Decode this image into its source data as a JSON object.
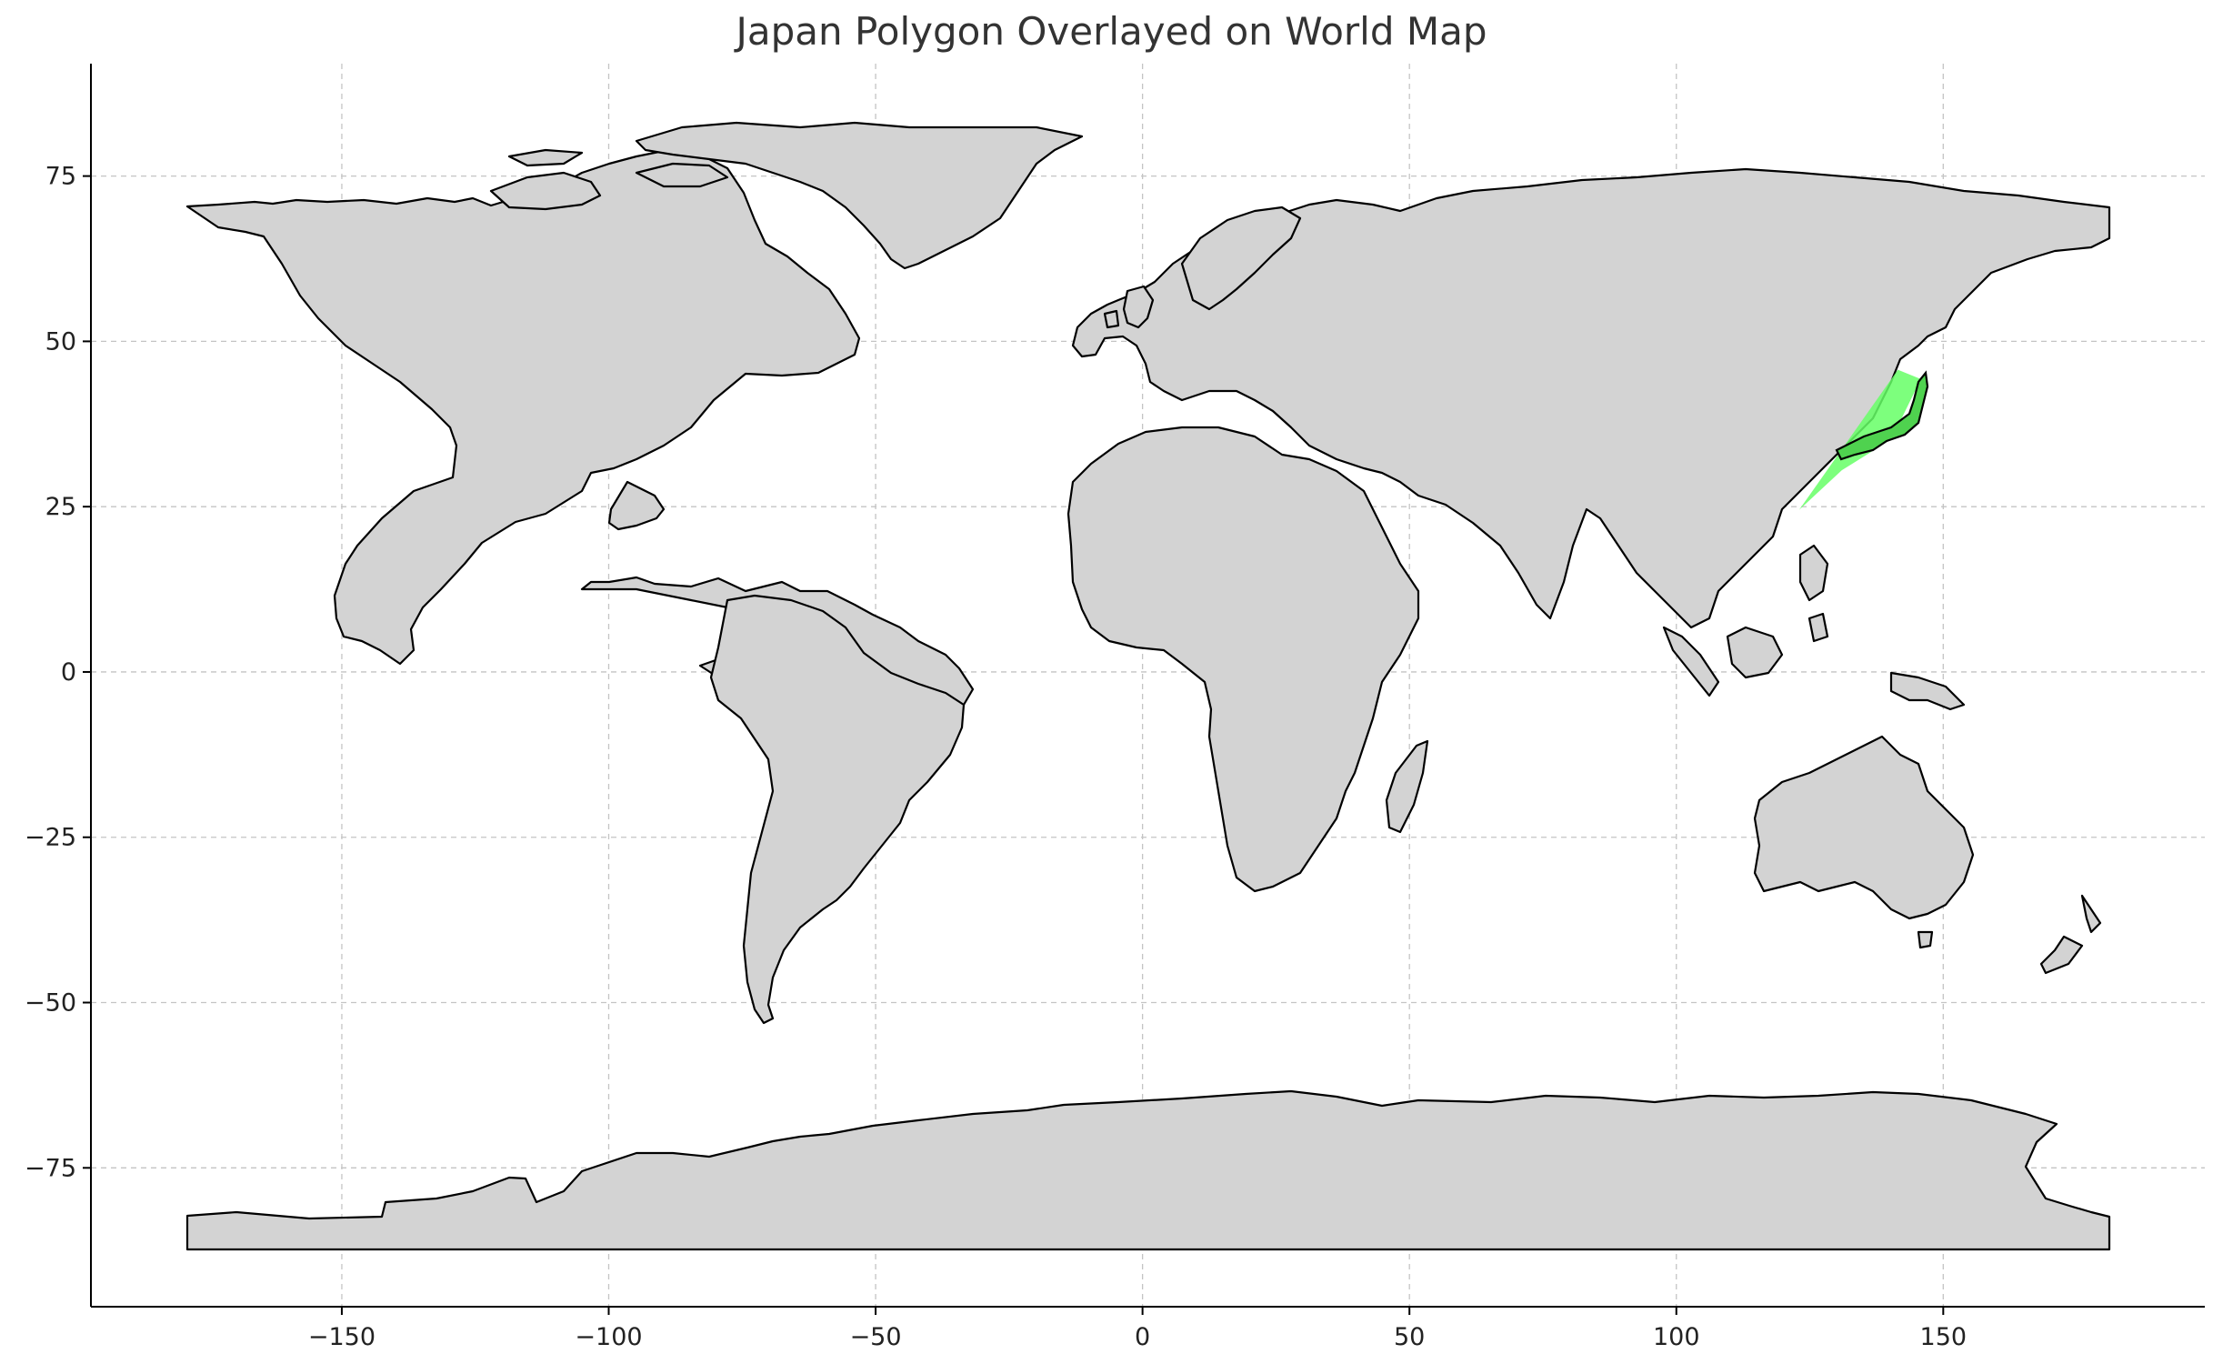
{
  "chart_data": {
    "type": "map",
    "title": "Japan Polygon Overlayed on World Map",
    "xlabel": "",
    "ylabel": "",
    "xlim": [
      -197,
      199
    ],
    "ylim": [
      -96,
      92
    ],
    "grid": true,
    "x_ticks": [
      -150,
      -100,
      -50,
      0,
      50,
      100,
      150
    ],
    "y_ticks": [
      75,
      50,
      25,
      0,
      -25,
      -50,
      -75
    ],
    "x_tick_labels": [
      "−150",
      "−100",
      "−50",
      "0",
      "50",
      "100",
      "150"
    ],
    "y_tick_labels": [
      "75",
      "50",
      "25",
      "0",
      "−25",
      "−50",
      "−75"
    ],
    "base_fill": "#d3d3d3",
    "outline_color": "#000000",
    "highlight": {
      "name": "Japan",
      "color": "#66ff66",
      "polygon_lonlat": [
        [
          123,
          24.5
        ],
        [
          141.5,
          45.7
        ],
        [
          145.8,
          44.3
        ],
        [
          140.3,
          35.2
        ],
        [
          131,
          30.5
        ],
        [
          123,
          24.5
        ]
      ]
    }
  }
}
